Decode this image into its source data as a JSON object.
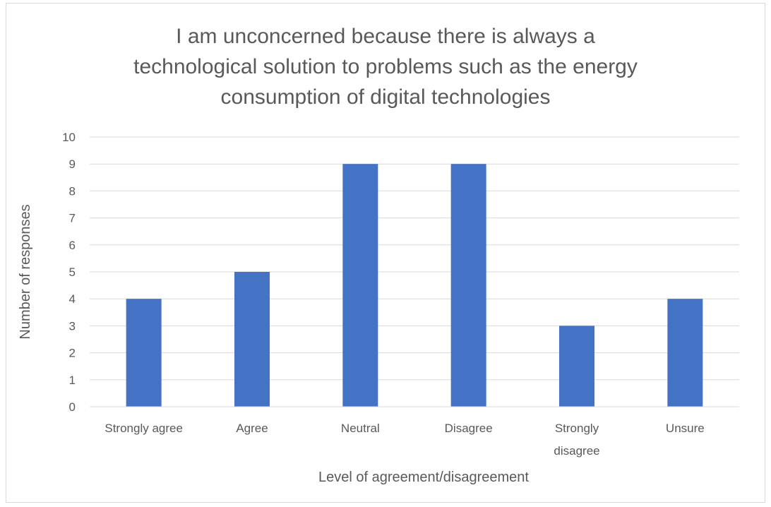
{
  "chart_data": {
    "type": "bar",
    "title_lines": [
      "I am unconcerned because there is always a",
      "technological solution to problems such as the energy",
      "consumption of digital technologies"
    ],
    "categories": [
      [
        "Strongly agree"
      ],
      [
        "Agree"
      ],
      [
        "Neutral"
      ],
      [
        "Disagree"
      ],
      [
        "Strongly",
        "disagree"
      ],
      [
        "Unsure"
      ]
    ],
    "values": [
      4,
      5,
      9,
      9,
      3,
      4
    ],
    "xlabel": "Level of agreement/disagreement",
    "ylabel": "Number of responses",
    "ylim": [
      0,
      10
    ],
    "yticks": [
      0,
      1,
      2,
      3,
      4,
      5,
      6,
      7,
      8,
      9,
      10
    ],
    "grid": true,
    "legend": "none",
    "colors": {
      "bar": "#4472C4",
      "grid": "#d9d9d9",
      "text": "#595959"
    }
  }
}
